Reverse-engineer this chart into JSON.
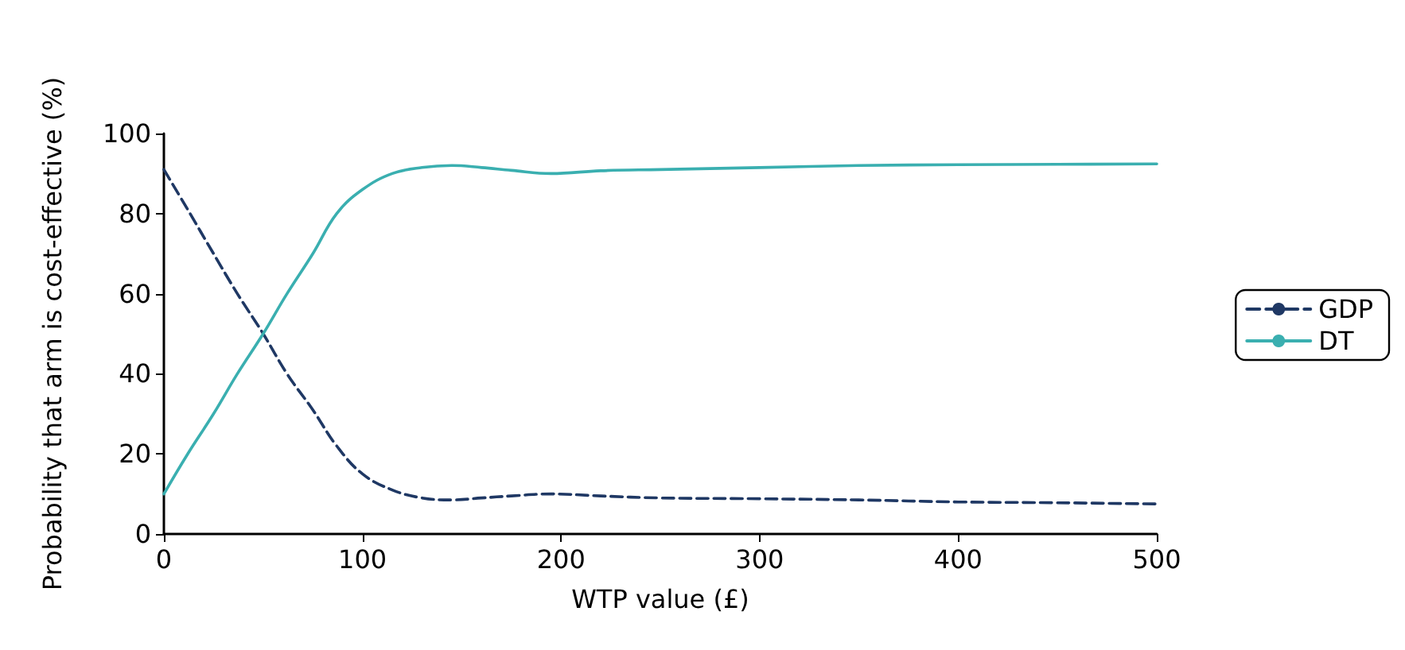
{
  "chart_data": {
    "type": "line",
    "xlabel": "WTP value (£)",
    "ylabel": "Probability that arm is cost-effective (%)",
    "xlim": [
      0,
      500
    ],
    "xticks": [
      0,
      100,
      200,
      300,
      400,
      500
    ],
    "ylim": [
      0,
      100
    ],
    "yticks": [
      0,
      20,
      40,
      60,
      80,
      100
    ],
    "grid": false,
    "legend": "right",
    "marker": "none",
    "series": [
      {
        "name": "GDP",
        "color": "#1f3864",
        "line_style": "dashed",
        "x": [
          0,
          12,
          25,
          37,
          50,
          62,
          75,
          87,
          100,
          115,
          130,
          145,
          160,
          175,
          195,
          220,
          250,
          300,
          350,
          400,
          450,
          500
        ],
        "values": [
          91,
          81,
          70,
          60,
          50,
          40,
          31,
          22,
          15,
          11,
          9,
          8.5,
          9,
          9.5,
          10,
          9.5,
          9,
          8.8,
          8.5,
          8,
          7.8,
          7.5
        ]
      },
      {
        "name": "DT",
        "color": "#3aafb0",
        "line_style": "solid",
        "x": [
          0,
          12,
          25,
          37,
          50,
          62,
          75,
          87,
          100,
          115,
          130,
          145,
          160,
          175,
          195,
          220,
          250,
          300,
          350,
          400,
          450,
          500
        ],
        "values": [
          10,
          20,
          30,
          40,
          50,
          60,
          70,
          80,
          86,
          90,
          91.5,
          92,
          91.5,
          90.8,
          90,
          90.7,
          91,
          91.5,
          92,
          92.2,
          92.3,
          92.4
        ]
      }
    ]
  }
}
